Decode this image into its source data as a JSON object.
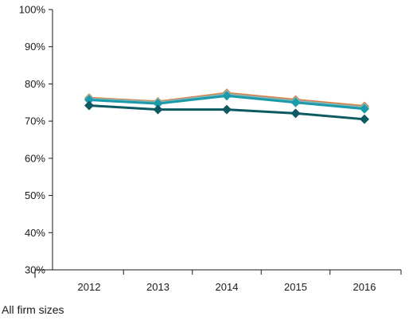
{
  "caption": "All firm sizes",
  "chart_data": {
    "type": "line",
    "categories": [
      "2012",
      "2013",
      "2014",
      "2015",
      "2016"
    ],
    "ylim": [
      0.3,
      1.0
    ],
    "yticks": [
      "30%",
      "40%",
      "50%",
      "60%",
      "70%",
      "80%",
      "90%",
      "100%"
    ],
    "ytick_values": [
      0.3,
      0.4,
      0.5,
      0.6,
      0.7,
      0.8,
      0.9,
      1.0
    ],
    "grid": false,
    "legend": "none",
    "series": [
      {
        "color": "#e07b39",
        "values": [
          0.762,
          0.752,
          0.775,
          0.757,
          0.74
        ]
      },
      {
        "color": "#86b5b9",
        "values": [
          0.76,
          0.75,
          0.772,
          0.754,
          0.737
        ]
      },
      {
        "color": "#1b9aaa",
        "values": [
          0.757,
          0.747,
          0.768,
          0.75,
          0.733
        ]
      },
      {
        "color": "#0e5a63",
        "values": [
          0.742,
          0.731,
          0.731,
          0.721,
          0.705
        ]
      }
    ]
  }
}
